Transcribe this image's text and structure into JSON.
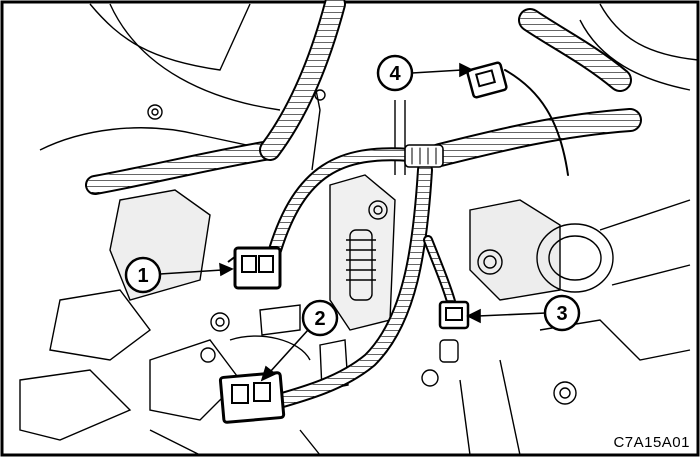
{
  "diagram": {
    "figure_code": "C7A15A01",
    "callouts": [
      {
        "number": "1",
        "target": "connector-1"
      },
      {
        "number": "2",
        "target": "connector-2"
      },
      {
        "number": "3",
        "target": "connector-3"
      },
      {
        "number": "4",
        "target": "connector-4"
      }
    ]
  },
  "colors": {
    "line": "#000000",
    "background": "#ffffff",
    "shade": "#e4e4e4",
    "connector_fill": "#ffffff"
  }
}
